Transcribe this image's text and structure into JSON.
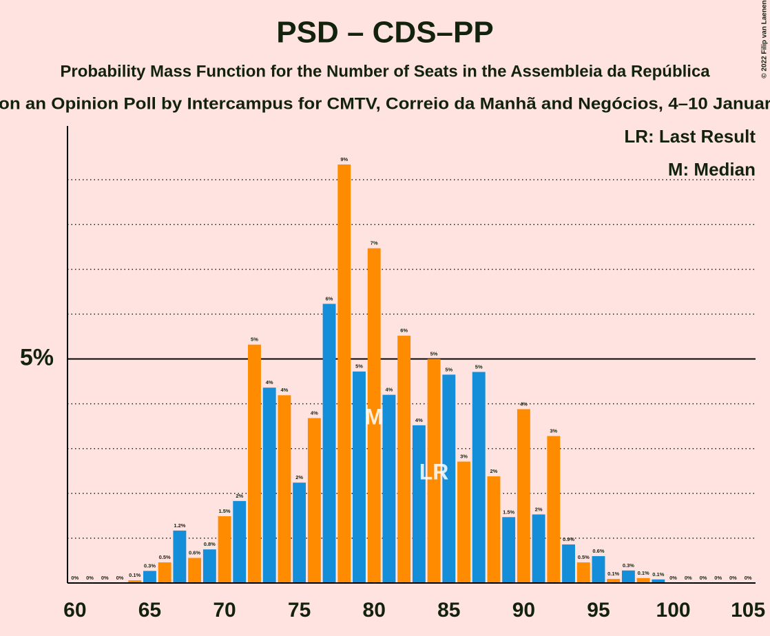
{
  "chart_data": {
    "type": "bar",
    "title": "PSD – CDS–PP",
    "subtitle": "Probability Mass Function for the Number of Seats in the Assembleia da República",
    "subtitle2": "on an Opinion Poll by Intercampus for CMTV, Correio da Manhã and Negócios, 4–10 Januar",
    "copyright": "© 2022 Filip van Laenen",
    "legend": [
      "LR: Last Result",
      "M: Median"
    ],
    "annotations": [
      {
        "label": "M",
        "x": 80
      },
      {
        "label": "LR",
        "x": 84
      }
    ],
    "x": [
      60,
      61,
      62,
      63,
      64,
      65,
      66,
      67,
      68,
      69,
      70,
      71,
      72,
      73,
      74,
      75,
      76,
      77,
      78,
      79,
      80,
      81,
      82,
      83,
      84,
      85,
      86,
      87,
      88,
      89,
      90,
      91,
      92,
      93,
      94,
      95,
      96,
      97,
      98,
      99,
      100,
      101,
      102,
      103,
      104,
      105
    ],
    "values": [
      0,
      0,
      0,
      0,
      0.06,
      0.27,
      0.46,
      1.17,
      0.56,
      0.75,
      1.49,
      1.83,
      5.32,
      4.36,
      4.19,
      2.24,
      3.68,
      6.23,
      9.34,
      4.72,
      7.47,
      4.2,
      5.52,
      3.52,
      5.0,
      4.65,
      2.71,
      4.71,
      2.38,
      1.47,
      3.88,
      1.53,
      3.28,
      0.86,
      0.46,
      0.6,
      0.09,
      0.28,
      0.11,
      0.08,
      0,
      0,
      0,
      0,
      0,
      0
    ],
    "value_labels": [
      "0%",
      "0%",
      "0%",
      "0%",
      "0.1%",
      "0.3%",
      "0.5%",
      "1.2%",
      "0.6%",
      "0.8%",
      "1.5%",
      "2%",
      "5%",
      "4%",
      "4%",
      "2%",
      "4%",
      "6%",
      "9%",
      "5%",
      "7%",
      "4%",
      "6%",
      "4%",
      "5%",
      "5%",
      "3%",
      "5%",
      "2%",
      "1.5%",
      "4%",
      "2%",
      "3%",
      "0.9%",
      "0.5%",
      "0.6%",
      "0.1%",
      "0.3%",
      "0.1%",
      "0.1%",
      "0%",
      "0%",
      "0%",
      "0%",
      "0%",
      "0%"
    ],
    "bar_colors": [
      "#FF8C00",
      "#148ED8",
      "#FF8C00",
      "#148ED8",
      "#FF8C00",
      "#148ED8",
      "#FF8C00",
      "#148ED8",
      "#FF8C00",
      "#148ED8",
      "#FF8C00",
      "#148ED8",
      "#FF8C00",
      "#148ED8",
      "#FF8C00",
      "#148ED8",
      "#FF8C00",
      "#148ED8",
      "#FF8C00",
      "#148ED8",
      "#FF8C00",
      "#148ED8",
      "#FF8C00",
      "#148ED8",
      "#FF8C00",
      "#148ED8",
      "#FF8C00",
      "#148ED8",
      "#FF8C00",
      "#148ED8",
      "#FF8C00",
      "#148ED8",
      "#FF8C00",
      "#148ED8",
      "#FF8C00",
      "#148ED8",
      "#FF8C00",
      "#148ED8",
      "#FF8C00",
      "#148ED8",
      "#FF8C00",
      "#148ED8",
      "#FF8C00",
      "#148ED8",
      "#FF8C00",
      "#148ED8"
    ],
    "xlim": [
      59.5,
      105.5
    ],
    "xticks": [
      60,
      65,
      70,
      75,
      80,
      85,
      90,
      95,
      100,
      105
    ],
    "ylim": [
      0,
      10.2
    ],
    "yticks": [
      {
        "value": 5,
        "label": "5%"
      }
    ],
    "grid_values": [
      1,
      2,
      3,
      4,
      6,
      7,
      8,
      9
    ]
  }
}
